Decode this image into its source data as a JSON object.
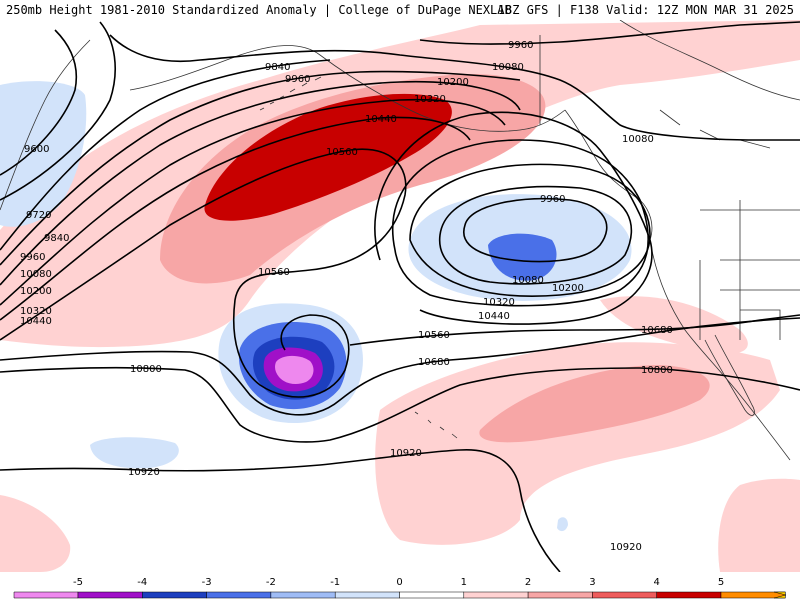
{
  "header": {
    "left_title": "250mb Height 1981-2010 Standardized Anomaly | College of DuPage NEXLAB",
    "right_title": "18Z GFS | F138 Valid: 12Z MON MAR 31 2025"
  },
  "contour_labels": {
    "c9960_a": "9960",
    "c10080_a": "10080",
    "c9840_a": "9840",
    "c9960_b": "9960",
    "c10200_a": "10200",
    "c10320_a": "10320",
    "c10440_a": "10440",
    "c10560_a": "10560",
    "c9600": "9600",
    "c9720": "9720",
    "c9840_b": "9840",
    "c9960_c": "9960",
    "c10080_b": "10080",
    "c10200_b": "10200",
    "c10320_b": "10320",
    "c10440_b": "10440",
    "c10080_c": "10080",
    "c9960_d": "9960",
    "c10080_d": "10080",
    "c10200_c": "10200",
    "c10320_c": "10320",
    "c10440_c": "10440",
    "c10560_b": "10560",
    "c10560_c": "10560",
    "c10680_a": "10680",
    "c10680_b": "10680",
    "c10800_a": "10800",
    "c10800_b": "10800",
    "c10920_a": "10920",
    "c10920_b": "10920",
    "c10920_c": "10920"
  },
  "legend": {
    "ticks": [
      "-5",
      "-4",
      "-3",
      "-2",
      "-1",
      "0",
      "1",
      "2",
      "3",
      "4",
      "5"
    ],
    "colors": [
      "#ee88ee",
      "#a010c8",
      "#1d3fbf",
      "#4a70e8",
      "#9fbcf5",
      "#d2e3fa",
      "#ffffff",
      "#ffd2d2",
      "#f7a6a6",
      "#ee5c5c",
      "#c80000",
      "#ff8c00",
      "#ffd200"
    ]
  }
}
